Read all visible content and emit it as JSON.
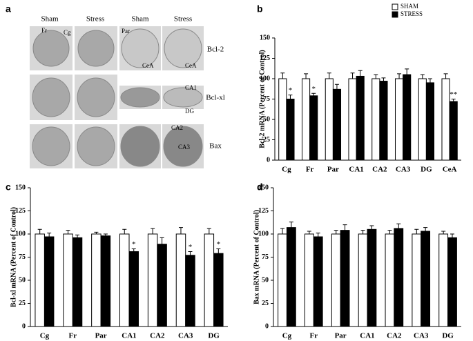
{
  "figure_a": {
    "label": "a",
    "columns": [
      "Sham",
      "Stress",
      "Sham",
      "Stress"
    ],
    "rows": [
      "Bcl-2",
      "Bcl-xl",
      "Bax"
    ],
    "annotations": [
      "Fr",
      "Cg",
      "Par",
      "CeA",
      "CeA",
      "CA1",
      "DG",
      "CA2",
      "CA3"
    ]
  },
  "chart_data": [
    {
      "type": "bar",
      "label": "b",
      "ylabel": "Bcl-2 mRNA (Percent of Control)",
      "categories": [
        "Cg",
        "Fr",
        "Par",
        "CA1",
        "CA2",
        "CA3",
        "DG",
        "CeA"
      ],
      "series": [
        {
          "name": "SHAM",
          "color": "#ffffff",
          "values": [
            100,
            100,
            100,
            100,
            100,
            100,
            100,
            100
          ],
          "errors": [
            7,
            6,
            7,
            7,
            5,
            6,
            5,
            6
          ]
        },
        {
          "name": "STRESS",
          "color": "#000000",
          "values": [
            75,
            79,
            87,
            103,
            97,
            105,
            95,
            72
          ],
          "errors": [
            5,
            3,
            6,
            7,
            4,
            7,
            5,
            3
          ]
        }
      ],
      "significance": [
        "*",
        "*",
        null,
        null,
        null,
        null,
        null,
        "**"
      ],
      "ylim": [
        0,
        150
      ],
      "yticks": [
        0,
        25,
        50,
        75,
        100,
        125,
        150
      ],
      "legend": "top-right"
    },
    {
      "type": "bar",
      "label": "c",
      "ylabel": "Bcl-xl mRNA (Percent of Control)",
      "categories": [
        "Cg",
        "Fr",
        "Par",
        "CA1",
        "CA2",
        "CA3",
        "DG"
      ],
      "series": [
        {
          "name": "SHAM",
          "color": "#ffffff",
          "values": [
            100,
            100,
            100,
            100,
            100,
            100,
            100
          ],
          "errors": [
            5,
            4,
            2,
            5,
            6,
            7,
            6
          ]
        },
        {
          "name": "STRESS",
          "color": "#000000",
          "values": [
            97,
            96,
            98,
            81,
            89,
            77,
            79
          ],
          "errors": [
            4,
            3,
            2,
            3,
            7,
            4,
            5
          ]
        }
      ],
      "significance": [
        null,
        null,
        null,
        "*",
        null,
        "*",
        "*"
      ],
      "ylim": [
        0,
        150
      ],
      "yticks": [
        0,
        25,
        50,
        75,
        100,
        125,
        150
      ]
    },
    {
      "type": "bar",
      "label": "d",
      "ylabel": "Bax mRNA (Percent of Control)",
      "categories": [
        "Cg",
        "Fr",
        "Par",
        "CA1",
        "CA2",
        "CA3",
        "DG"
      ],
      "series": [
        {
          "name": "SHAM",
          "color": "#ffffff",
          "values": [
            100,
            100,
            100,
            100,
            100,
            100,
            100
          ],
          "errors": [
            6,
            3,
            4,
            4,
            4,
            5,
            3
          ]
        },
        {
          "name": "STRESS",
          "color": "#000000",
          "values": [
            107,
            97,
            104,
            105,
            106,
            103,
            96
          ],
          "errors": [
            6,
            4,
            6,
            4,
            5,
            4,
            4
          ]
        }
      ],
      "ylim": [
        0,
        150
      ],
      "yticks": [
        0,
        25,
        50,
        75,
        100,
        125,
        150
      ]
    }
  ]
}
